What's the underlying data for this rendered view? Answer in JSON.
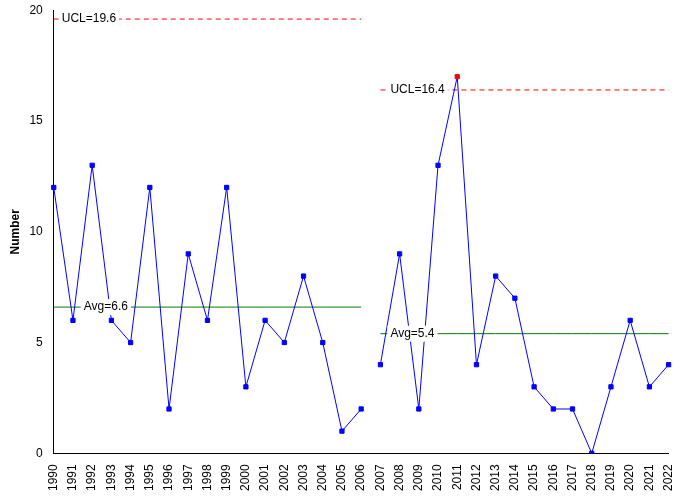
{
  "chart_data": {
    "type": "line",
    "y_label": "Number",
    "categories": [
      "1990",
      "1991",
      "1992",
      "1993",
      "1994",
      "1995",
      "1996",
      "1997",
      "1998",
      "1999",
      "2000",
      "2001",
      "2002",
      "2003",
      "2004",
      "2005",
      "2006",
      "2007",
      "2008",
      "2009",
      "2010",
      "2011",
      "2012",
      "2013",
      "2014",
      "2015",
      "2016",
      "2017",
      "2018",
      "2019",
      "2020",
      "2021",
      "2022"
    ],
    "series": [
      {
        "color": "#0000ff",
        "marker": "square",
        "values": [
          12,
          6,
          13,
          6,
          5,
          12,
          2,
          9,
          6,
          12,
          3,
          6,
          5,
          8,
          5,
          1,
          2,
          null,
          null,
          null,
          null,
          null,
          null,
          null,
          null,
          null,
          null,
          null,
          null,
          null,
          null,
          null,
          null
        ]
      },
      {
        "color": "#0000ff",
        "marker": "square",
        "values": [
          null,
          null,
          null,
          null,
          null,
          null,
          null,
          null,
          null,
          null,
          null,
          null,
          null,
          null,
          null,
          null,
          null,
          4,
          9,
          2,
          13,
          17,
          4,
          8,
          7,
          3,
          2,
          2,
          0,
          3,
          6,
          3,
          4
        ],
        "colors": [
          "#0000ff",
          "#0000ff",
          "#0000ff",
          "#0000ff",
          "#0000ff",
          "#0000ff",
          "#0000ff",
          "#0000ff",
          "#0000ff",
          "#0000ff",
          "#0000ff",
          "#0000ff",
          "#0000ff",
          "#0000ff",
          "#0000ff",
          "#0000ff",
          "#0000ff",
          "#0000ff",
          "#0000ff",
          "#0000ff",
          "#0000ff",
          "#ff0000",
          "#0000ff",
          "#0000ff",
          "#0000ff",
          "#0000ff",
          "#0000ff",
          "#0000ff",
          "#0000ff",
          "#0000ff",
          "#0000ff",
          "#0000ff",
          "#0000ff"
        ]
      }
    ],
    "limits": [
      {
        "text": "UCL=19.6",
        "value": 19.6,
        "start": "1990",
        "end": "2006",
        "color": "#ff0000",
        "line_style": "dashed"
      },
      {
        "text": "Avg=6.6",
        "value": 6.6,
        "start": "1990",
        "end": "2006",
        "color": "#008000",
        "line_style": "solid"
      },
      {
        "text": "UCL=16.4",
        "value": 16.4,
        "start": "2007",
        "end": "2022",
        "color": "#ff0000",
        "line_style": "dashed"
      },
      {
        "text": "Avg=5.4",
        "value": 5.4,
        "start": "2007",
        "end": "2022",
        "color": "#008000",
        "line_style": "solid"
      }
    ],
    "ylim": [
      0,
      20
    ],
    "yticks": [
      0,
      5,
      10,
      15,
      20
    ],
    "grid": false
  }
}
